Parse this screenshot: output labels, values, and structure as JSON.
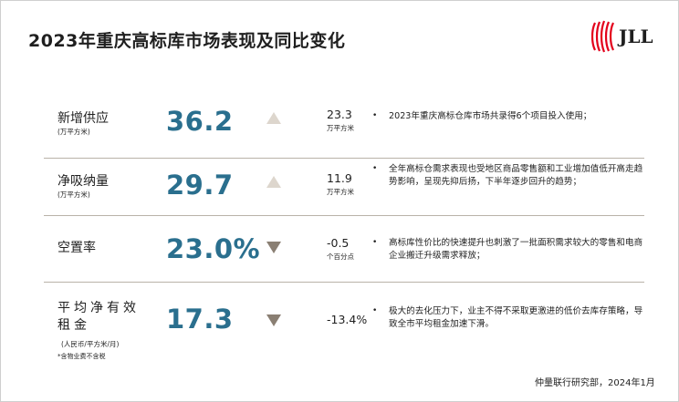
{
  "title": "2023年重庆高标库市场表现及同比变化",
  "logo": {
    "text": "JLL",
    "color": "#e3001b"
  },
  "metrics": [
    {
      "name": "新增供应",
      "unit": "(万平方米)",
      "value": "36.2",
      "trend": "up",
      "change": "23.3",
      "change_unit": "万平方米",
      "description": "2023年重庆高标仓库市场共录得6个项目投入使用；"
    },
    {
      "name": "净吸纳量",
      "unit": "(万平方米)",
      "value": "29.7",
      "trend": "up",
      "change": "11.9",
      "change_unit": "万平方米",
      "description": "全年高标仓需求表现也受地区商品零售额和工业增加值低开高走趋势影响，呈现先抑后扬，下半年逐步回升的趋势；"
    },
    {
      "name": "空置率",
      "unit": "",
      "value": "23.0%",
      "trend": "down",
      "change": "-0.5",
      "change_unit": "个百分点",
      "description": "高标库性价比的快速提升也刺激了一批面积需求较大的零售和电商企业搬迁升级需求释放；"
    },
    {
      "name": "平均净有效租金",
      "unit": "(人民币/平方米/月)",
      "note": "*含物业费不含税",
      "value": "17.3",
      "trend": "down",
      "change": "-13.4%",
      "change_unit": "",
      "description": "极大的去化压力下，业主不得不采取更激进的低价去库存策略，导致全市平均租金加速下滑。"
    }
  ],
  "bullet": "•",
  "source": "仲量联行研究部，2024年1月",
  "colors": {
    "value": "#2a6f8e",
    "up_arrow": "#ddd6cd",
    "down_arrow": "#8a7f73",
    "rule": "#b9b2a8"
  }
}
